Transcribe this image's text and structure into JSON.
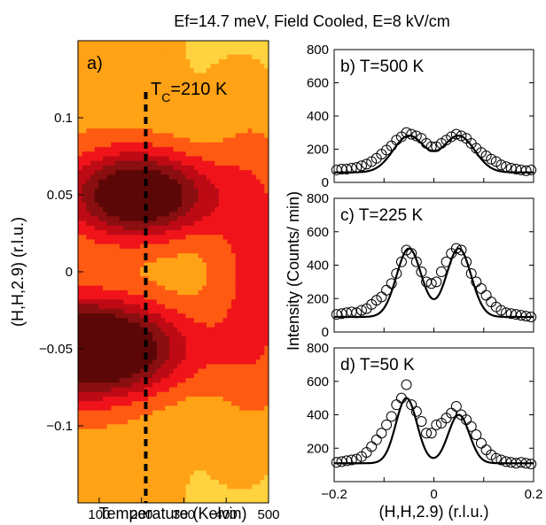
{
  "figure": {
    "title": "Ef=14.7 meV, Field Cooled, E=8 kV/cm"
  },
  "chart_data": [
    {
      "type": "heatmap",
      "panel_label": "a)",
      "xlabel": "Temperature (Kelvin)",
      "ylabel": "(H,H,2.9) (r.l.u.)",
      "xlim": [
        50,
        500
      ],
      "ylim": [
        -0.15,
        0.15
      ],
      "xticks": [
        100,
        200,
        300,
        400,
        500
      ],
      "yticks": [
        -0.1,
        -0.05,
        0,
        0.05,
        0.1
      ],
      "ytick_labels": [
        "−0.1",
        "−0.05",
        "0",
        "0.05",
        "0.1"
      ],
      "colormap": [
        "#fffcc4",
        "#ffee99",
        "#ffd23f",
        "#ffa216",
        "#ff5a12",
        "#f0141a",
        "#bd0a14",
        "#8a0f10",
        "#5c0707"
      ],
      "peaks": [
        {
          "h": 0.05,
          "t": 200,
          "level": 0.85
        },
        {
          "h": -0.05,
          "t": 80,
          "level": 0.98
        }
      ],
      "annotation": {
        "text": "T",
        "subscript": "C",
        "suffix": "=210 K",
        "x": 210
      },
      "grid": false
    },
    {
      "type": "scatter",
      "panel_label": "b) T=500 K",
      "xlim": [
        -0.2,
        0.2
      ],
      "ylim": [
        0,
        800
      ],
      "yticks": [
        0,
        200,
        400,
        600,
        800
      ],
      "fit": {
        "background": 60,
        "amplitude": 220,
        "centers": [
          -0.05,
          0.05
        ],
        "width": 0.045
      },
      "x": [
        -0.195,
        -0.185,
        -0.175,
        -0.165,
        -0.155,
        -0.145,
        -0.135,
        -0.125,
        -0.115,
        -0.105,
        -0.095,
        -0.085,
        -0.075,
        -0.065,
        -0.055,
        -0.045,
        -0.035,
        -0.025,
        -0.015,
        -0.005,
        0.005,
        0.015,
        0.025,
        0.035,
        0.045,
        0.055,
        0.065,
        0.075,
        0.085,
        0.095,
        0.105,
        0.115,
        0.125,
        0.135,
        0.145,
        0.155,
        0.165,
        0.175,
        0.185,
        0.195
      ],
      "y": [
        75,
        80,
        80,
        85,
        90,
        100,
        110,
        125,
        145,
        170,
        195,
        220,
        255,
        275,
        300,
        290,
        280,
        265,
        235,
        215,
        215,
        235,
        255,
        275,
        290,
        280,
        265,
        235,
        205,
        180,
        160,
        140,
        125,
        105,
        95,
        85,
        80,
        75,
        70,
        75
      ]
    },
    {
      "type": "scatter",
      "panel_label": "c) T=225 K",
      "xlim": [
        -0.2,
        0.2
      ],
      "ylim": [
        0,
        800
      ],
      "yticks": [
        0,
        200,
        400,
        600,
        800
      ],
      "fit": {
        "background": 90,
        "amplitude": 410,
        "centers": [
          -0.05,
          0.05
        ],
        "width": 0.035
      },
      "x": [
        -0.195,
        -0.185,
        -0.175,
        -0.165,
        -0.155,
        -0.145,
        -0.135,
        -0.125,
        -0.115,
        -0.105,
        -0.095,
        -0.085,
        -0.075,
        -0.065,
        -0.055,
        -0.045,
        -0.035,
        -0.025,
        -0.015,
        -0.005,
        0.005,
        0.015,
        0.025,
        0.035,
        0.045,
        0.055,
        0.065,
        0.075,
        0.085,
        0.095,
        0.105,
        0.115,
        0.125,
        0.135,
        0.145,
        0.155,
        0.165,
        0.175,
        0.185,
        0.195
      ],
      "y": [
        105,
        110,
        115,
        120,
        115,
        130,
        140,
        165,
        190,
        210,
        250,
        290,
        350,
        420,
        490,
        470,
        420,
        360,
        300,
        290,
        300,
        360,
        420,
        470,
        500,
        490,
        420,
        350,
        300,
        260,
        220,
        180,
        150,
        130,
        115,
        110,
        105,
        100,
        95,
        90
      ]
    },
    {
      "type": "scatter",
      "panel_label": "d) T=50 K",
      "xlim": [
        -0.2,
        0.2
      ],
      "ylim": [
        0,
        800
      ],
      "xticks": [
        -0.2,
        0,
        0.2
      ],
      "xtick_labels": [
        "−0.2",
        "0",
        "0.2"
      ],
      "yticks": [
        200,
        400,
        600,
        800
      ],
      "xlabel": "(H,H,2.9) (r.l.u.)",
      "fit": {
        "background": 110,
        "amplitude": 390,
        "centers": [
          -0.055,
          0.05
        ],
        "amplitudes": [
          390,
          290
        ],
        "width": 0.03
      },
      "x": [
        -0.195,
        -0.185,
        -0.175,
        -0.165,
        -0.155,
        -0.145,
        -0.135,
        -0.125,
        -0.115,
        -0.105,
        -0.095,
        -0.085,
        -0.075,
        -0.065,
        -0.055,
        -0.045,
        -0.035,
        -0.025,
        -0.015,
        -0.005,
        0.005,
        0.015,
        0.025,
        0.035,
        0.045,
        0.055,
        0.065,
        0.075,
        0.085,
        0.095,
        0.105,
        0.115,
        0.125,
        0.135,
        0.145,
        0.155,
        0.165,
        0.175,
        0.185,
        0.195
      ],
      "y": [
        115,
        120,
        125,
        130,
        135,
        150,
        175,
        210,
        250,
        290,
        340,
        390,
        460,
        500,
        580,
        460,
        420,
        360,
        290,
        290,
        340,
        350,
        380,
        410,
        450,
        400,
        370,
        330,
        280,
        230,
        190,
        160,
        140,
        130,
        120,
        115,
        110,
        115,
        110,
        105
      ]
    }
  ],
  "shared": {
    "right_ylabel": "Intensity (Counts/ min)"
  }
}
